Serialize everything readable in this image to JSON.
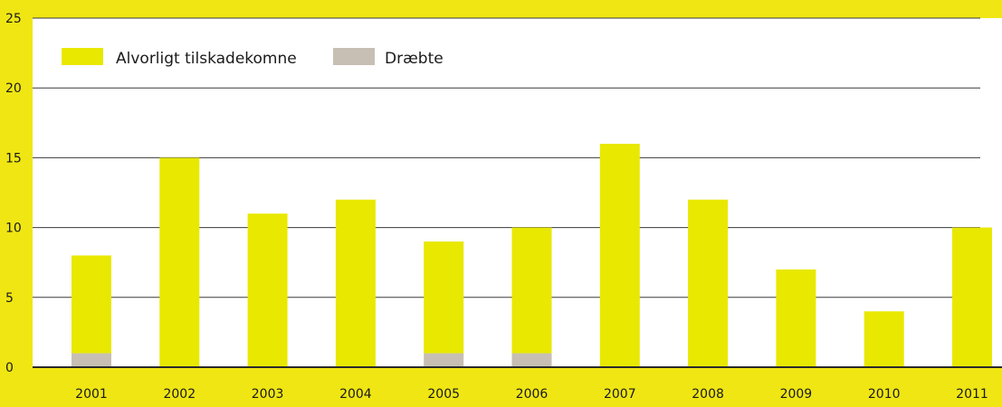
{
  "chart_data": {
    "type": "bar",
    "stacked": true,
    "categories": [
      "2001",
      "2002",
      "2003",
      "2004",
      "2005",
      "2006",
      "2007",
      "2008",
      "2009",
      "2010",
      "2011"
    ],
    "series": [
      {
        "name": "Alvorligt tilskadekomne",
        "color": "#e8e800",
        "values": [
          7,
          15,
          11,
          12,
          8,
          9,
          16,
          12,
          7,
          4,
          10
        ]
      },
      {
        "name": "Dræbte",
        "color": "#c7bfb4",
        "values": [
          1,
          0,
          0,
          0,
          1,
          1,
          0,
          0,
          0,
          0,
          0
        ]
      }
    ],
    "stack_order": [
      "Dræbte",
      "Alvorligt tilskadekomne"
    ],
    "ylim": [
      0,
      25
    ],
    "yticks": [
      "0",
      "5",
      "10",
      "15",
      "20",
      "25"
    ],
    "grid": true,
    "legend_position": "top-left",
    "panel_background": "#ffffff",
    "page_background": "#f0e614"
  }
}
